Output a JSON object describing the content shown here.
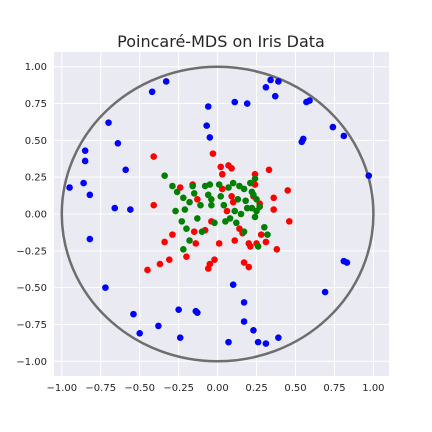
{
  "chart_data": {
    "type": "scatter",
    "title": "Poincaré-MDS on Iris Data",
    "xlabel": "",
    "ylabel": "",
    "xlim": [
      -1.05,
      1.1
    ],
    "ylim": [
      -1.1,
      1.1
    ],
    "xticks": [
      -1.0,
      -0.75,
      -0.5,
      -0.25,
      0.0,
      0.25,
      0.5,
      0.75,
      1.0
    ],
    "xtick_labels": [
      "−1.00",
      "−0.75",
      "−0.50",
      "−0.25",
      "0.00",
      "0.25",
      "0.50",
      "0.75",
      "1.00"
    ],
    "yticks": [
      1.0,
      0.75,
      0.5,
      0.25,
      0.0,
      -0.25,
      -0.5,
      -0.75,
      -1.0
    ],
    "ytick_labels": [
      "1.00",
      "0.75",
      "0.50",
      "0.25",
      "0.00",
      "−0.25",
      "−0.50",
      "−0.75",
      "−1.00"
    ],
    "grid": true,
    "legend": null,
    "background_color": "#eaeaf2",
    "grid_color": "#ffffff",
    "unit_circle": {
      "radius": 1.0,
      "color": "#6e6e6e"
    },
    "series": [
      {
        "color": "#0000ff",
        "points": [
          [
            -0.33,
            0.9
          ],
          [
            -0.42,
            0.83
          ],
          [
            -0.7,
            0.62
          ],
          [
            -0.64,
            0.48
          ],
          [
            -0.85,
            0.43
          ],
          [
            -0.85,
            0.36
          ],
          [
            -0.59,
            0.3
          ],
          [
            -0.95,
            0.18
          ],
          [
            -0.86,
            0.21
          ],
          [
            -0.82,
            0.13
          ],
          [
            -0.66,
            0.04
          ],
          [
            -0.56,
            0.03
          ],
          [
            -0.82,
            -0.17
          ],
          [
            -0.72,
            -0.5
          ],
          [
            -0.54,
            -0.68
          ],
          [
            -0.5,
            -0.81
          ],
          [
            -0.38,
            -0.76
          ],
          [
            -0.25,
            -0.65
          ],
          [
            -0.24,
            -0.84
          ],
          [
            -0.13,
            -0.67
          ],
          [
            -0.14,
            -0.66
          ],
          [
            0.1,
            -0.48
          ],
          [
            0.07,
            -0.87
          ],
          [
            0.17,
            -0.6
          ],
          [
            0.17,
            -0.73
          ],
          [
            0.23,
            -0.79
          ],
          [
            0.26,
            -0.87
          ],
          [
            0.31,
            -0.88
          ],
          [
            0.39,
            -0.84
          ],
          [
            0.69,
            -0.53
          ],
          [
            0.81,
            -0.32
          ],
          [
            0.83,
            -0.33
          ],
          [
            0.97,
            0.26
          ],
          [
            0.81,
            0.53
          ],
          [
            0.74,
            0.59
          ],
          [
            0.54,
            0.49
          ],
          [
            0.55,
            0.51
          ],
          [
            0.59,
            0.77
          ],
          [
            0.57,
            0.76
          ],
          [
            0.39,
            0.9
          ],
          [
            0.34,
            0.91
          ],
          [
            0.31,
            0.86
          ],
          [
            0.37,
            0.8
          ],
          [
            0.19,
            0.75
          ],
          [
            0.11,
            0.76
          ],
          [
            -0.06,
            0.73
          ],
          [
            -0.07,
            0.6
          ],
          [
            -0.05,
            0.52
          ]
        ]
      },
      {
        "color": "#ff0000",
        "points": [
          [
            -0.41,
            0.39
          ],
          [
            -0.41,
            0.06
          ],
          [
            -0.45,
            -0.38
          ],
          [
            -0.37,
            -0.34
          ],
          [
            -0.31,
            -0.31
          ],
          [
            -0.34,
            -0.19
          ],
          [
            -0.29,
            -0.14
          ],
          [
            -0.24,
            0.18
          ],
          [
            -0.16,
            0.2
          ],
          [
            -0.13,
            0.1
          ],
          [
            -0.15,
            -0.12
          ],
          [
            -0.14,
            -0.2
          ],
          [
            -0.06,
            -0.37
          ],
          [
            -0.05,
            -0.34
          ],
          [
            -0.04,
            -0.05
          ],
          [
            -0.08,
            -0.11
          ],
          [
            -0.03,
            0.41
          ],
          [
            0.03,
            0.27
          ],
          [
            0.03,
            0.17
          ],
          [
            0.02,
            0.32
          ],
          [
            0.07,
            0.33
          ],
          [
            0.09,
            0.31
          ],
          [
            0.09,
            0.12
          ],
          [
            0.1,
            0.08
          ],
          [
            0.06,
            0.02
          ],
          [
            0.14,
            -0.1
          ],
          [
            0.2,
            -0.2
          ],
          [
            0.21,
            -0.22
          ],
          [
            0.17,
            -0.33
          ],
          [
            0.2,
            -0.36
          ],
          [
            0.23,
            0.12
          ],
          [
            0.24,
            0.2
          ],
          [
            0.24,
            0.27
          ],
          [
            0.28,
            -0.14
          ],
          [
            0.33,
            0.3
          ],
          [
            0.36,
            0.11
          ],
          [
            0.36,
            0.03
          ],
          [
            0.45,
            0.16
          ],
          [
            0.46,
            -0.05
          ],
          [
            0.25,
            -0.2
          ],
          [
            0.31,
            -0.19
          ],
          [
            0.38,
            -0.24
          ],
          [
            0.27,
            0.07
          ],
          [
            -0.02,
            -0.31
          ],
          [
            0.01,
            -0.2
          ],
          [
            0.11,
            -0.18
          ],
          [
            -0.2,
            -0.29
          ],
          [
            0.16,
            -0.13
          ]
        ]
      },
      {
        "color": "#008000",
        "points": [
          [
            -0.34,
            0.26
          ],
          [
            -0.29,
            0.19
          ],
          [
            -0.27,
            0.02
          ],
          [
            -0.26,
            0.15
          ],
          [
            -0.23,
            -0.05
          ],
          [
            -0.22,
            0.11
          ],
          [
            -0.21,
            0.03
          ],
          [
            -0.18,
            0.08
          ],
          [
            -0.16,
            0.19
          ],
          [
            -0.15,
            0.14
          ],
          [
            -0.13,
            -0.03
          ],
          [
            -0.11,
            0.06
          ],
          [
            -0.08,
            0.19
          ],
          [
            -0.06,
            0.13
          ],
          [
            -0.05,
            0.2
          ],
          [
            -0.04,
            0.06
          ],
          [
            -0.02,
            -0.06
          ],
          [
            0.01,
            0.2
          ],
          [
            0.02,
            0.12
          ],
          [
            0.04,
            0.06
          ],
          [
            0.07,
            0.18
          ],
          [
            0.08,
            -0.03
          ],
          [
            0.1,
            0.21
          ],
          [
            0.11,
            0.02
          ],
          [
            0.12,
            -0.06
          ],
          [
            0.13,
            0.1
          ],
          [
            0.14,
            0.19
          ],
          [
            0.15,
            0.0
          ],
          [
            0.17,
            -0.12
          ],
          [
            0.18,
            0.09
          ],
          [
            0.19,
            0.04
          ],
          [
            0.21,
            0.21
          ],
          [
            0.22,
            0.04
          ],
          [
            0.23,
            0.13
          ],
          [
            0.24,
            -0.02
          ],
          [
            0.25,
            0.02
          ],
          [
            0.26,
            -0.22
          ],
          [
            0.27,
            0.05
          ],
          [
            0.3,
            -0.09
          ],
          [
            0.32,
            -0.14
          ],
          [
            0.24,
            0.24
          ],
          [
            0.22,
            0.15
          ],
          [
            -0.22,
            -0.24
          ],
          [
            -0.18,
            -0.18
          ],
          [
            -0.1,
            -0.12
          ],
          [
            -0.2,
            -0.1
          ],
          [
            -0.04,
            0.1
          ],
          [
            0.17,
            0.17
          ],
          [
            0.05,
            -0.05
          ],
          [
            0.25,
            0.1
          ]
        ]
      }
    ]
  }
}
